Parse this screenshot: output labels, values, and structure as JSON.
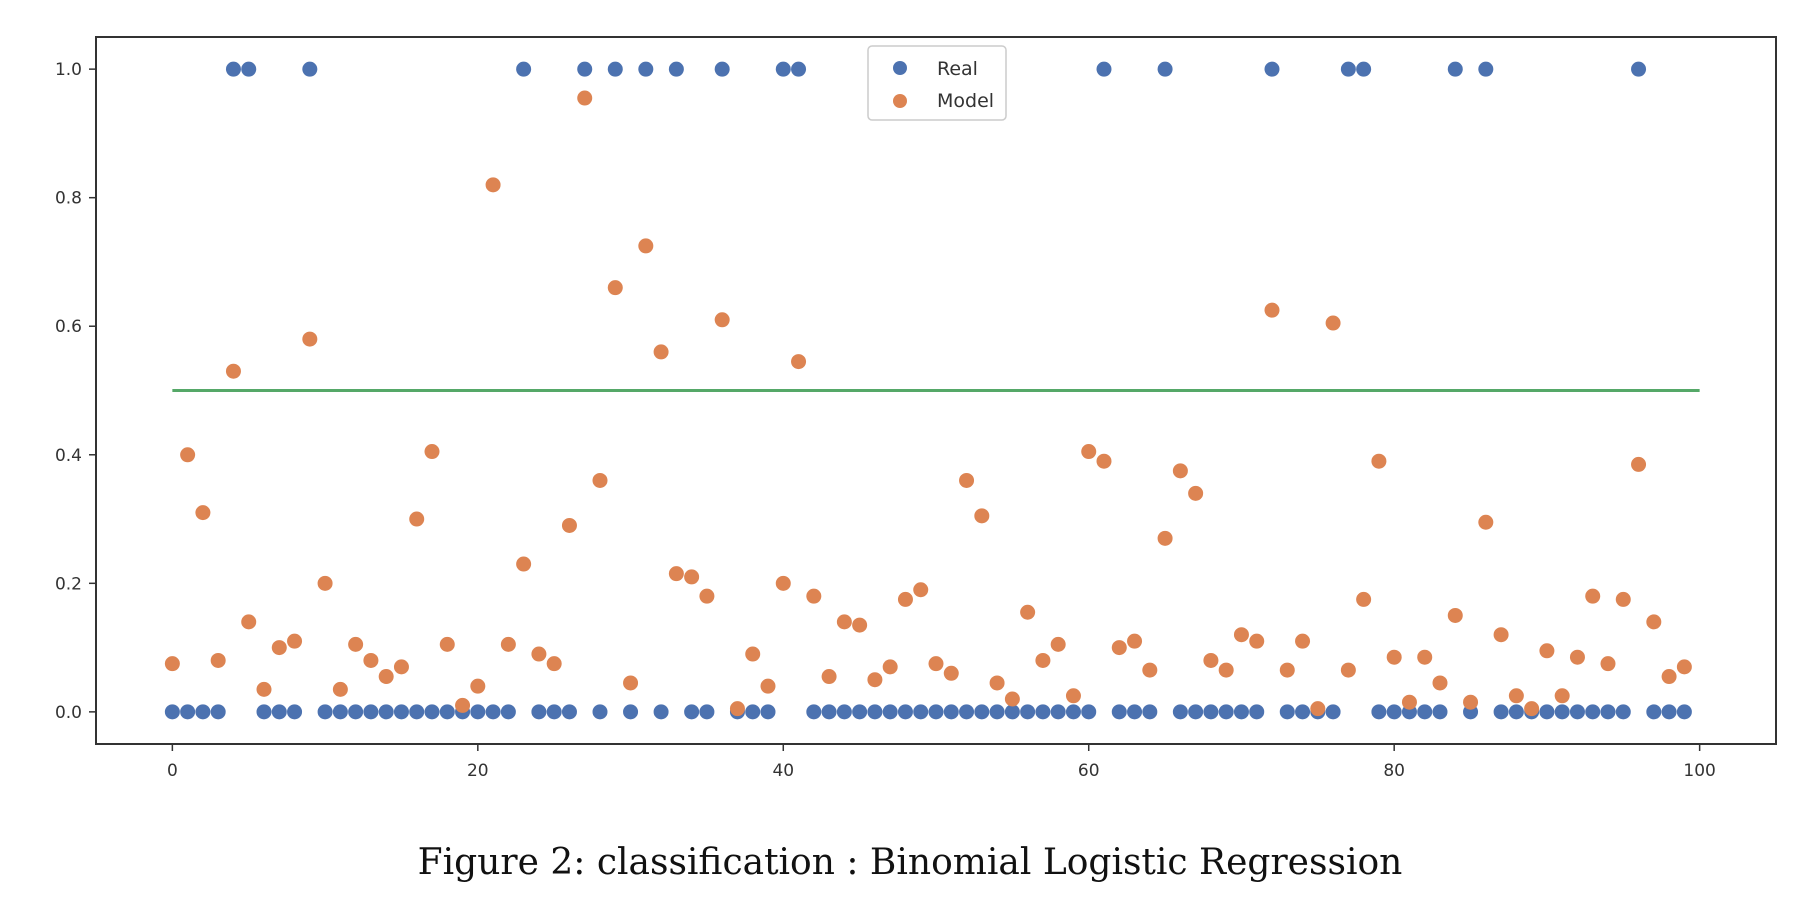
{
  "chart_data": {
    "type": "scatter",
    "caption": "Figure 2: classification : Binomial Logistic Regression",
    "xlim": [
      -5,
      105
    ],
    "ylim": [
      -0.05,
      1.05
    ],
    "x_ticks": [
      0,
      20,
      40,
      60,
      80,
      100
    ],
    "y_ticks": [
      0.0,
      0.2,
      0.4,
      0.6,
      0.8,
      1.0
    ],
    "grid": false,
    "legend_position": "top-center",
    "series": [
      {
        "name": "Real",
        "color": "#4c72b0",
        "x": [
          0,
          1,
          2,
          3,
          4,
          5,
          6,
          7,
          8,
          9,
          10,
          11,
          12,
          13,
          14,
          15,
          16,
          17,
          18,
          19,
          20,
          21,
          22,
          23,
          24,
          25,
          26,
          27,
          28,
          29,
          30,
          31,
          32,
          33,
          34,
          35,
          36,
          37,
          38,
          39,
          40,
          41,
          42,
          43,
          44,
          45,
          46,
          47,
          48,
          49,
          50,
          51,
          52,
          53,
          54,
          55,
          56,
          57,
          58,
          59,
          60,
          61,
          62,
          63,
          64,
          65,
          66,
          67,
          68,
          69,
          70,
          71,
          72,
          73,
          74,
          75,
          76,
          77,
          78,
          79,
          80,
          81,
          82,
          83,
          84,
          85,
          86,
          87,
          88,
          89,
          90,
          91,
          92,
          93,
          94,
          95,
          96,
          97,
          98,
          99
        ],
        "y": [
          0,
          0,
          0,
          0,
          1,
          1,
          0,
          0,
          0,
          1,
          0,
          0,
          0,
          0,
          0,
          0,
          0,
          0,
          0,
          0,
          0,
          0,
          0,
          1,
          0,
          0,
          0,
          1,
          0,
          1,
          0,
          1,
          0,
          1,
          0,
          0,
          1,
          0,
          0,
          0,
          1,
          1,
          0,
          0,
          0,
          0,
          0,
          0,
          0,
          0,
          0,
          0,
          0,
          0,
          0,
          0,
          0,
          0,
          0,
          0,
          0,
          1,
          0,
          0,
          0,
          1,
          0,
          0,
          0,
          0,
          0,
          0,
          1,
          0,
          0,
          0,
          0,
          1,
          1,
          0,
          0,
          0,
          0,
          0,
          1,
          0,
          1,
          0,
          0,
          0,
          0,
          0,
          0,
          0,
          0,
          0,
          1,
          0,
          0,
          0
        ]
      },
      {
        "name": "Model",
        "color": "#dd8452",
        "x": [
          0,
          1,
          2,
          3,
          4,
          5,
          6,
          7,
          8,
          9,
          10,
          11,
          12,
          13,
          14,
          15,
          16,
          17,
          18,
          19,
          20,
          21,
          22,
          23,
          24,
          25,
          26,
          27,
          28,
          29,
          30,
          31,
          32,
          33,
          34,
          35,
          36,
          37,
          38,
          39,
          40,
          41,
          42,
          43,
          44,
          45,
          46,
          47,
          48,
          49,
          50,
          51,
          52,
          53,
          54,
          55,
          56,
          57,
          58,
          59,
          60,
          61,
          62,
          63,
          64,
          65,
          66,
          67,
          68,
          69,
          70,
          71,
          72,
          73,
          74,
          75,
          76,
          77,
          78,
          79,
          80,
          81,
          82,
          83,
          84,
          85,
          86,
          87,
          88,
          89,
          90,
          91,
          92,
          93,
          94,
          95,
          96,
          97,
          98,
          99
        ],
        "y": [
          0.075,
          0.4,
          0.31,
          0.08,
          0.53,
          0.14,
          0.035,
          0.1,
          0.11,
          0.58,
          0.2,
          0.035,
          0.105,
          0.08,
          0.055,
          0.07,
          0.3,
          0.405,
          0.105,
          0.01,
          0.04,
          0.82,
          0.105,
          0.23,
          0.09,
          0.075,
          0.29,
          0.955,
          0.36,
          0.66,
          0.045,
          0.725,
          0.56,
          0.215,
          0.21,
          0.18,
          0.61,
          0.005,
          0.09,
          0.04,
          0.2,
          0.545,
          0.18,
          0.055,
          0.14,
          0.135,
          0.05,
          0.07,
          0.175,
          0.19,
          0.075,
          0.06,
          0.36,
          0.305,
          0.045,
          0.02,
          0.155,
          0.08,
          0.105,
          0.025,
          0.405,
          0.39,
          0.1,
          0.11,
          0.065,
          0.27,
          0.375,
          0.34,
          0.08,
          0.065,
          0.12,
          0.11,
          0.625,
          0.065,
          0.11,
          0.005,
          0.605,
          0.065,
          0.175,
          0.39,
          0.085,
          0.015,
          0.085,
          0.045,
          0.15,
          0.015,
          0.295,
          0.12,
          0.025,
          0.005,
          0.095,
          0.025,
          0.085,
          0.18,
          0.075,
          0.175,
          0.385,
          0.14,
          0.055,
          0.07
        ]
      }
    ],
    "threshold_line": {
      "x": [
        0,
        100
      ],
      "y": 0.5,
      "color": "#55a868"
    }
  }
}
